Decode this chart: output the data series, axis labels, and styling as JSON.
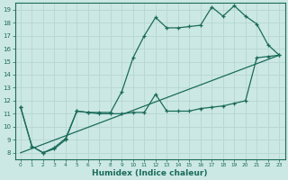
{
  "xlabel": "Humidex (Indice chaleur)",
  "xlim": [
    -0.5,
    23.5
  ],
  "ylim": [
    7.5,
    19.5
  ],
  "xticks": [
    0,
    1,
    2,
    3,
    4,
    5,
    6,
    7,
    8,
    9,
    10,
    11,
    12,
    13,
    14,
    15,
    16,
    17,
    18,
    19,
    20,
    21,
    22,
    23
  ],
  "yticks": [
    8,
    9,
    10,
    11,
    12,
    13,
    14,
    15,
    16,
    17,
    18,
    19
  ],
  "bg_color": "#cce8e4",
  "line_color": "#1a6b5a",
  "grid_color": "#b8d8d4",
  "line1_x": [
    0,
    1,
    2,
    3,
    4,
    5,
    6,
    7,
    8,
    9,
    10,
    11,
    12,
    13,
    14,
    15,
    16,
    17,
    18,
    19,
    20,
    21,
    22,
    23
  ],
  "line1_y": [
    11.5,
    8.5,
    8.0,
    8.4,
    9.1,
    11.2,
    11.1,
    11.1,
    11.1,
    12.7,
    15.3,
    17.0,
    18.4,
    17.6,
    17.6,
    17.7,
    17.8,
    19.2,
    18.5,
    19.3,
    18.5,
    17.9,
    16.3,
    15.5
  ],
  "line2_x": [
    0,
    1,
    2,
    3,
    4,
    5,
    6,
    7,
    8,
    9,
    10,
    11,
    12,
    13,
    14,
    15,
    16,
    17,
    18,
    19,
    20,
    21,
    22,
    23
  ],
  "line2_y": [
    11.5,
    8.5,
    8.0,
    8.3,
    9.0,
    11.2,
    11.1,
    11.0,
    11.0,
    11.0,
    11.1,
    11.1,
    12.5,
    11.2,
    11.2,
    11.2,
    11.4,
    11.5,
    11.6,
    11.8,
    12.0,
    15.3,
    15.4,
    15.5
  ],
  "line3_x": [
    0,
    23
  ],
  "line3_y": [
    8.0,
    15.5
  ]
}
